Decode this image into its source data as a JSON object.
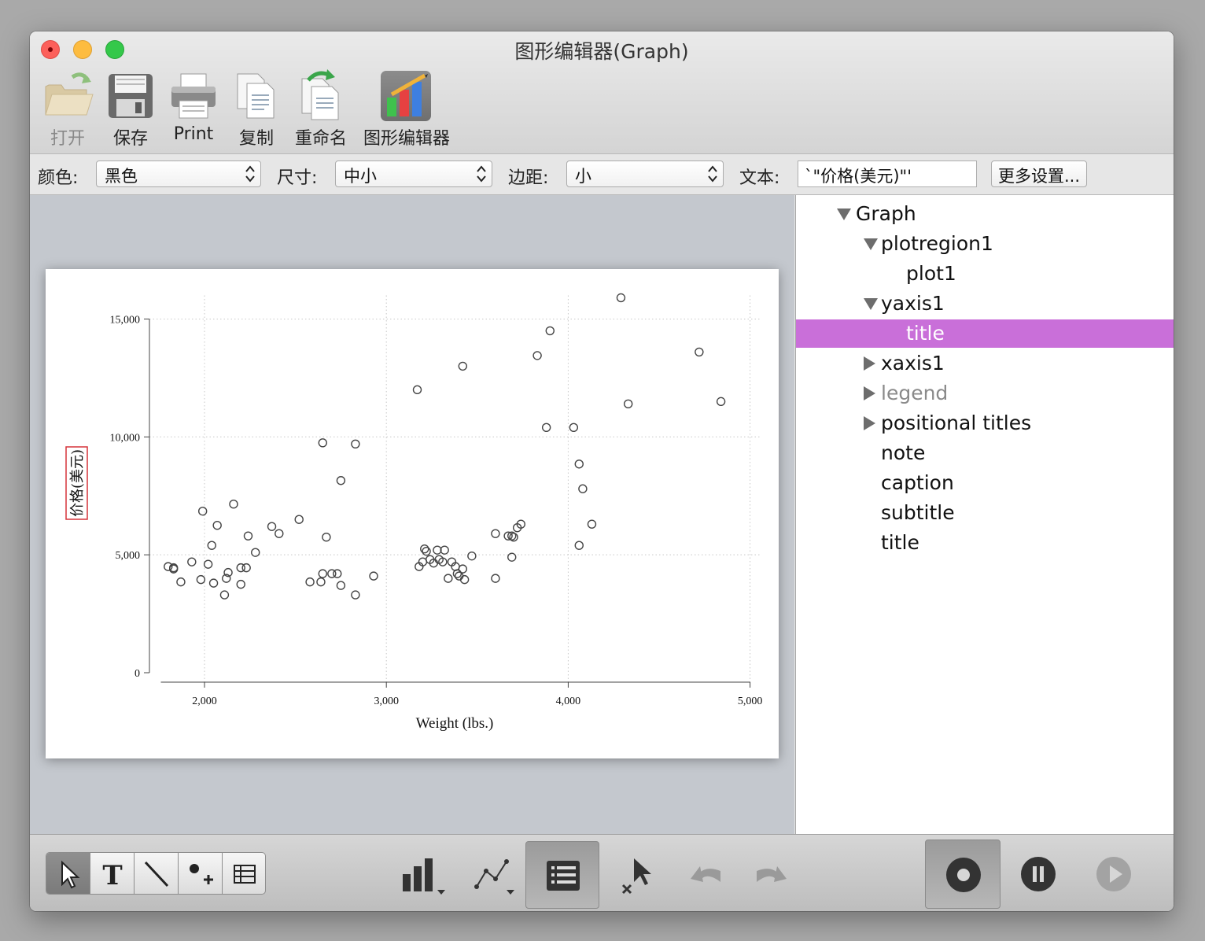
{
  "window": {
    "title": "图形编辑器(Graph)"
  },
  "toolbar": {
    "open_label": "打开",
    "save_label": "保存",
    "print_label": "Print",
    "copy_label": "复制",
    "rename_label": "重命名",
    "graph_editor_label": "图形编辑器"
  },
  "properties": {
    "color_label": "颜色:",
    "color_value": "黑色",
    "size_label": "尺寸:",
    "size_value": "中小",
    "margin_label": "边距:",
    "margin_value": "小",
    "text_label": "文本:",
    "text_value": "`\"价格(美元)\"'",
    "more_button": "更多设置..."
  },
  "tree": {
    "items": [
      {
        "label": "Graph",
        "toggle": "expanded"
      },
      {
        "label": "plotregion1",
        "toggle": "expanded"
      },
      {
        "label": "plot1",
        "toggle": "none"
      },
      {
        "label": "yaxis1",
        "toggle": "expanded"
      },
      {
        "label": "title",
        "toggle": "none",
        "selected": true
      },
      {
        "label": "xaxis1",
        "toggle": "collapsed"
      },
      {
        "label": "legend",
        "toggle": "collapsed",
        "dimmed": true
      },
      {
        "label": "positional titles",
        "toggle": "collapsed"
      },
      {
        "label": "note",
        "toggle": "none"
      },
      {
        "label": "caption",
        "toggle": "none"
      },
      {
        "label": "subtitle",
        "toggle": "none"
      },
      {
        "label": "title",
        "toggle": "none"
      }
    ],
    "selected_color": "#c96fd9"
  },
  "bottom_tools": {
    "segment": [
      "pointer-tool",
      "text-tool",
      "line-tool",
      "marker-tool",
      "grid-tool"
    ],
    "active_tool": "pointer-tool",
    "buttons": [
      "bar-chart-menu",
      "line-chart-menu",
      "object-browser",
      "edit-objects",
      "undo",
      "redo",
      "record",
      "pause",
      "play"
    ]
  },
  "chart_data": {
    "type": "scatter",
    "xlabel": "Weight (lbs.)",
    "ylabel": "价格(美元)",
    "x_ticks": [
      2000,
      3000,
      4000,
      5000
    ],
    "x_tick_labels": [
      "2,000",
      "3,000",
      "4,000",
      "5,000"
    ],
    "y_ticks": [
      0,
      5000,
      10000,
      15000
    ],
    "y_tick_labels": [
      "0",
      "5,000",
      "10,000",
      "15,000"
    ],
    "xlim": [
      1760,
      5000
    ],
    "ylim": [
      0,
      15800
    ],
    "grid": true,
    "marker": "hollow-circle",
    "points": [
      [
        1800,
        4500
      ],
      [
        1830,
        4450
      ],
      [
        1830,
        4400
      ],
      [
        1870,
        3850
      ],
      [
        1930,
        4700
      ],
      [
        1980,
        3950
      ],
      [
        1990,
        6850
      ],
      [
        2020,
        4600
      ],
      [
        2040,
        5400
      ],
      [
        2050,
        3800
      ],
      [
        2070,
        6250
      ],
      [
        2110,
        3300
      ],
      [
        2120,
        4000
      ],
      [
        2130,
        4250
      ],
      [
        2160,
        7150
      ],
      [
        2200,
        4450
      ],
      [
        2200,
        3750
      ],
      [
        2230,
        4450
      ],
      [
        2240,
        5800
      ],
      [
        2280,
        5100
      ],
      [
        2370,
        6200
      ],
      [
        2410,
        5900
      ],
      [
        2520,
        6500
      ],
      [
        2580,
        3850
      ],
      [
        2640,
        3850
      ],
      [
        2650,
        4200
      ],
      [
        2650,
        9750
      ],
      [
        2670,
        5750
      ],
      [
        2700,
        4200
      ],
      [
        2730,
        4200
      ],
      [
        2750,
        3700
      ],
      [
        2750,
        8150
      ],
      [
        2830,
        3300
      ],
      [
        2830,
        9700
      ],
      [
        2930,
        4100
      ],
      [
        3170,
        12000
      ],
      [
        3180,
        4500
      ],
      [
        3200,
        4700
      ],
      [
        3210,
        5250
      ],
      [
        3220,
        5150
      ],
      [
        3240,
        4800
      ],
      [
        3260,
        4650
      ],
      [
        3280,
        5200
      ],
      [
        3290,
        4800
      ],
      [
        3310,
        4700
      ],
      [
        3320,
        5200
      ],
      [
        3340,
        4000
      ],
      [
        3360,
        4700
      ],
      [
        3380,
        4500
      ],
      [
        3390,
        4200
      ],
      [
        3400,
        4100
      ],
      [
        3420,
        13000
      ],
      [
        3420,
        4400
      ],
      [
        3430,
        3950
      ],
      [
        3470,
        4950
      ],
      [
        3600,
        5900
      ],
      [
        3600,
        4000
      ],
      [
        3670,
        5800
      ],
      [
        3690,
        5800
      ],
      [
        3690,
        4900
      ],
      [
        3700,
        5750
      ],
      [
        3720,
        6150
      ],
      [
        3740,
        6300
      ],
      [
        3830,
        13450
      ],
      [
        3880,
        10400
      ],
      [
        3900,
        14500
      ],
      [
        4030,
        10400
      ],
      [
        4060,
        8850
      ],
      [
        4060,
        5400
      ],
      [
        4080,
        7800
      ],
      [
        4130,
        6300
      ],
      [
        4290,
        15900
      ],
      [
        4330,
        11400
      ],
      [
        4720,
        13600
      ],
      [
        4840,
        11500
      ]
    ]
  }
}
